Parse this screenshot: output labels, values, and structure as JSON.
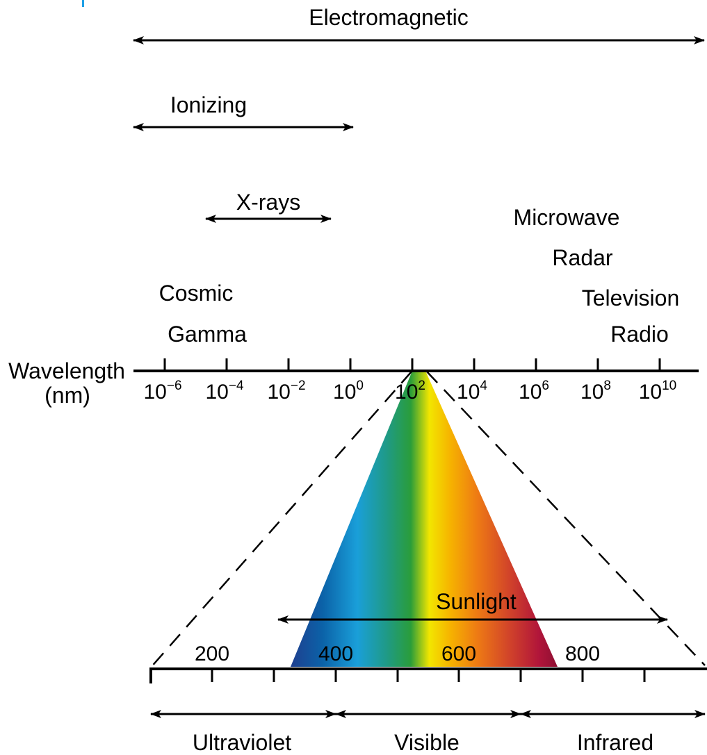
{
  "labels": {
    "electromagnetic": "Electromagnetic",
    "ionizing": "Ionizing",
    "xrays": "X-rays",
    "microwave": "Microwave",
    "radar": "Radar",
    "cosmic": "Cosmic",
    "television": "Television",
    "gamma": "Gamma",
    "radio": "Radio",
    "wavelength": "Wavelength",
    "unit": "(nm)",
    "sunlight": "Sunlight",
    "ultraviolet": "Ultraviolet",
    "visible": "Visible",
    "infrared": "Infrared"
  },
  "log_axis": {
    "base": "10",
    "exponents": [
      "−6",
      "−4",
      "−2",
      "0",
      "2",
      "4",
      "6",
      "8",
      "10"
    ]
  },
  "linear_axis": {
    "ticks": [
      "200",
      "400",
      "600",
      "800"
    ]
  },
  "colors": {
    "line": "#000000",
    "accent_mark": "#1ea0e6",
    "spectrum": [
      "#1f3f8f",
      "#0b62a8",
      "#1a9fd9",
      "#1f9a86",
      "#2a9d3a",
      "#f2e600",
      "#f6b200",
      "#ee7a14",
      "#d1432a",
      "#b1153a",
      "#8e0f33"
    ]
  }
}
